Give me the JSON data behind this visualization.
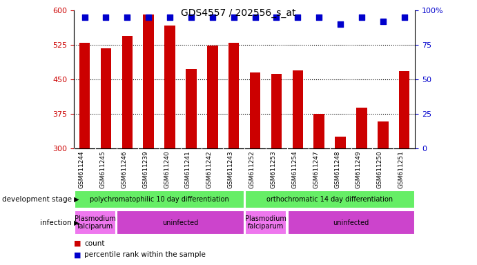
{
  "title": "GDS4557 / 202556_s_at",
  "samples": [
    "GSM611244",
    "GSM611245",
    "GSM611246",
    "GSM611239",
    "GSM611240",
    "GSM611241",
    "GSM611242",
    "GSM611243",
    "GSM611252",
    "GSM611253",
    "GSM611254",
    "GSM611247",
    "GSM611248",
    "GSM611249",
    "GSM611250",
    "GSM611251"
  ],
  "counts": [
    530,
    518,
    545,
    592,
    567,
    473,
    524,
    530,
    465,
    462,
    470,
    375,
    325,
    388,
    358,
    468
  ],
  "percentiles": [
    95,
    95,
    95,
    95,
    95,
    95,
    95,
    95,
    95,
    95,
    95,
    95,
    90,
    95,
    92,
    95
  ],
  "ymin": 300,
  "ymax": 600,
  "yticks": [
    300,
    375,
    450,
    525,
    600
  ],
  "y2ticks": [
    0,
    25,
    50,
    75,
    100
  ],
  "bar_color": "#cc0000",
  "dot_color": "#0000cc",
  "dev_color": "#66ee66",
  "infect_plasmodium_color": "#ee77ee",
  "infect_uninfected_color": "#cc44cc",
  "xtick_bg_color": "#dddddd",
  "bar_width": 0.5,
  "dot_size": 30,
  "dev_stage_groups": [
    {
      "label": "polychromatophilic 10 day differentiation",
      "start": 0,
      "end": 8
    },
    {
      "label": "orthochromatic 14 day differentiation",
      "start": 8,
      "end": 16
    }
  ],
  "infection_groups": [
    {
      "label": "Plasmodium\nfalciparum",
      "start": 0,
      "end": 2,
      "plas": true
    },
    {
      "label": "uninfected",
      "start": 2,
      "end": 8,
      "plas": false
    },
    {
      "label": "Plasmodium\nfalciparum",
      "start": 8,
      "end": 10,
      "plas": true
    },
    {
      "label": "uninfected",
      "start": 10,
      "end": 16,
      "plas": false
    }
  ]
}
